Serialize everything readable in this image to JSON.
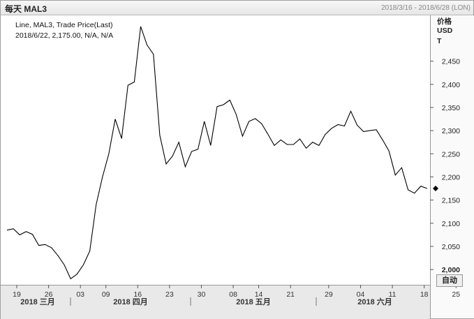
{
  "header": {
    "title": "每天 MAL3",
    "date_range": "2018/3/16 - 2018/6/28 (LON)"
  },
  "legend": {
    "line1": "Line, MAL3, Trade Price(Last)",
    "line2": "2018/6/22, 2,175.00, N/A, N/A"
  },
  "axis": {
    "unit_line1": "价格",
    "unit_line2": "USD",
    "unit_line3": "T",
    "auto_button": "自动"
  },
  "chart_data": {
    "type": "line",
    "series": [
      {
        "values": [
          2085,
          2088,
          2075,
          2082,
          2076,
          2052,
          2054,
          2047,
          2030,
          2010,
          1980,
          1990,
          2010,
          2040,
          2140,
          2200,
          2250,
          2325,
          2283,
          2398,
          2405,
          2525,
          2485,
          2465,
          2290,
          2228,
          2245,
          2275,
          2222,
          2255,
          2260,
          2320,
          2268,
          2352,
          2356,
          2366,
          2335,
          2288,
          2320,
          2326,
          2315,
          2292,
          2268,
          2280,
          2270,
          2270,
          2282,
          2262,
          2275,
          2268,
          2292,
          2305,
          2313,
          2310,
          2342,
          2312,
          2298,
          2300,
          2302,
          2280,
          2256,
          2204,
          2220,
          2172,
          2165,
          2180,
          2175
        ]
      }
    ],
    "y_ticks": [
      "2,000",
      "2,050",
      "2,100",
      "2,150",
      "2,200",
      "2,250",
      "2,300",
      "2,350",
      "2,400",
      "2,450"
    ],
    "y_tick_values": [
      2000,
      2050,
      2100,
      2150,
      2200,
      2250,
      2300,
      2350,
      2400,
      2450
    ],
    "ylim": [
      1967,
      2549
    ],
    "last_value": 2175,
    "x_day_ticks": [
      "19",
      "26",
      "03",
      "09",
      "16",
      "23",
      "30",
      "08",
      "14",
      "21",
      "29",
      "04",
      "11",
      "18",
      "25"
    ],
    "x_month_labels": [
      "2018 三月",
      "2018 四月",
      "2018 五月",
      "2018 六月"
    ],
    "grid": false,
    "legend_position": "top-left"
  }
}
